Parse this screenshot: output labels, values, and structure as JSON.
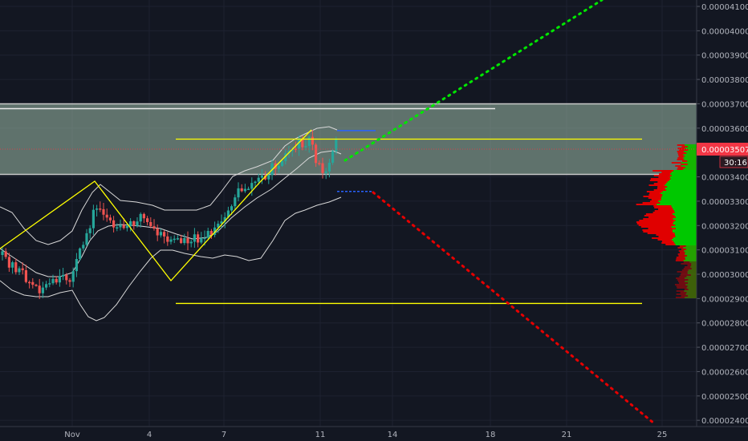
{
  "chart_data": {
    "type": "candlestick",
    "y_axis": {
      "ticks": [
        "0.00004100",
        "0.00004000",
        "0.00003900",
        "0.00003800",
        "0.00003700",
        "0.00003600",
        "0.00003400",
        "0.00003300",
        "0.00003200",
        "0.00003100",
        "0.00003000",
        "0.00002900",
        "0.00002800",
        "0.00002700",
        "0.00002600",
        "0.00002500",
        "0.00002400"
      ],
      "range": [
        2.4e-05,
        4.12e-05
      ]
    },
    "x_axis": {
      "ticks": [
        "Nov",
        "4",
        "7",
        "11",
        "14",
        "18",
        "21",
        "25"
      ]
    },
    "current_price": {
      "label": "0.00003507",
      "countdown": "30:16",
      "color": "#f23645"
    },
    "resistance_zone": {
      "low": 3.41e-05,
      "high": 3.7e-05
    },
    "levels": [
      {
        "name": "upper-yellow",
        "y": 3.555e-05,
        "color": "#ffff00"
      },
      {
        "name": "lower-yellow",
        "y": 2.88e-05,
        "color": "#ffff00"
      },
      {
        "name": "white-top",
        "y": 3.68e-05,
        "color": "#e8e8e8"
      },
      {
        "name": "blue-upper",
        "y": 3.59e-05,
        "color": "#2962ff"
      },
      {
        "name": "blue-lower",
        "y": 3.34e-05,
        "color": "#2962ff"
      }
    ],
    "projections": {
      "bullish_color": "#00e600",
      "bearish_color": "#e60000"
    },
    "colors": {
      "up": "#26a69a",
      "down": "#ef5350",
      "grid": "#1e2230",
      "zigzag": "#ffff00"
    }
  }
}
